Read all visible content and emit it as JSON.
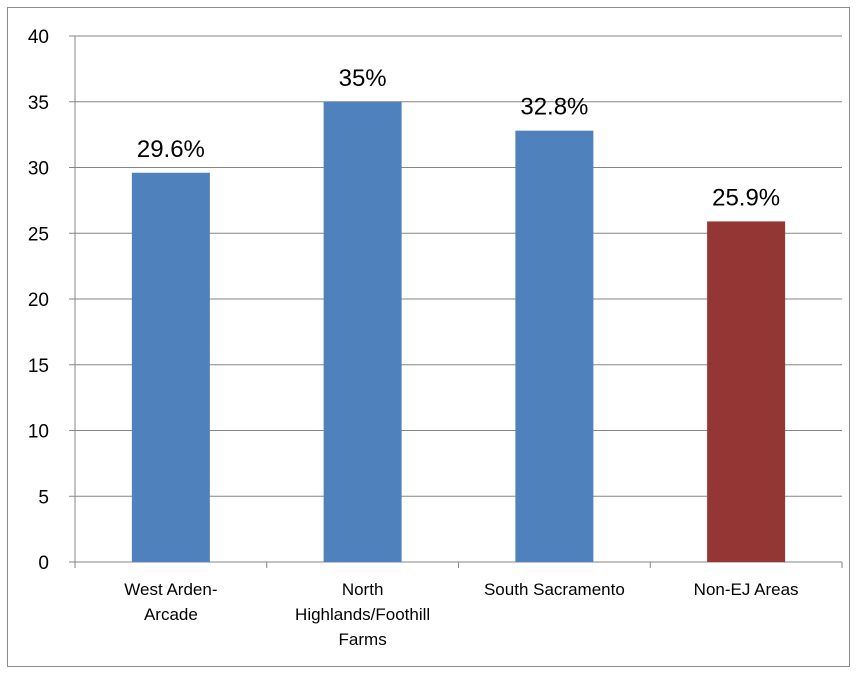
{
  "chart_data": {
    "type": "bar",
    "title": "",
    "xlabel": "",
    "ylabel": "",
    "categories": [
      [
        "West Arden-",
        "Arcade"
      ],
      [
        "North",
        "Highlands/Foothill",
        "Farms"
      ],
      [
        "South Sacramento"
      ],
      [
        "Non-EJ Areas"
      ]
    ],
    "values": [
      29.6,
      35,
      32.8,
      25.9
    ],
    "data_labels": [
      "29.6%",
      "35%",
      "32.8%",
      "25.9%"
    ],
    "bar_colors": [
      "#4f81bd",
      "#4f81bd",
      "#4f81bd",
      "#943634"
    ],
    "ylim": [
      0,
      40
    ],
    "yticks": [
      0,
      5,
      10,
      15,
      20,
      25,
      30,
      35,
      40
    ],
    "grid": true,
    "legend": "none"
  }
}
